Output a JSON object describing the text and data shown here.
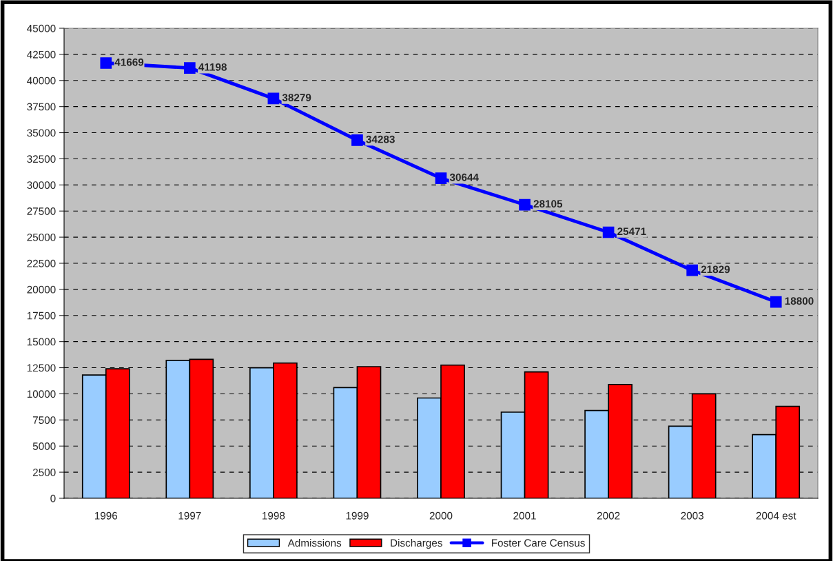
{
  "chart_data": {
    "type": "bar",
    "categories": [
      "1996",
      "1997",
      "1998",
      "1999",
      "2000",
      "2001",
      "2002",
      "2003",
      "2004 est"
    ],
    "series": [
      {
        "name": "Admissions",
        "color": "#99ccff",
        "values": [
          11800,
          13200,
          12500,
          10600,
          9600,
          8250,
          8400,
          6900,
          6100
        ]
      },
      {
        "name": "Discharges",
        "color": "#ff0000",
        "values": [
          12400,
          13300,
          12950,
          12600,
          12750,
          12100,
          10900,
          10000,
          8800
        ]
      },
      {
        "name": "Foster Care Census",
        "type": "line",
        "color": "#0000ff",
        "marker": "square",
        "data_labels": true,
        "values": [
          41669,
          41198,
          38279,
          34283,
          30644,
          28105,
          25471,
          21829,
          18800
        ]
      }
    ],
    "ylim": [
      0,
      45000
    ],
    "yticks": [
      0,
      2500,
      5000,
      7500,
      10000,
      12500,
      15000,
      17500,
      20000,
      22500,
      25000,
      27500,
      30000,
      32500,
      35000,
      37500,
      40000,
      42500,
      45000
    ],
    "grid": "y",
    "legend": "bottom"
  }
}
